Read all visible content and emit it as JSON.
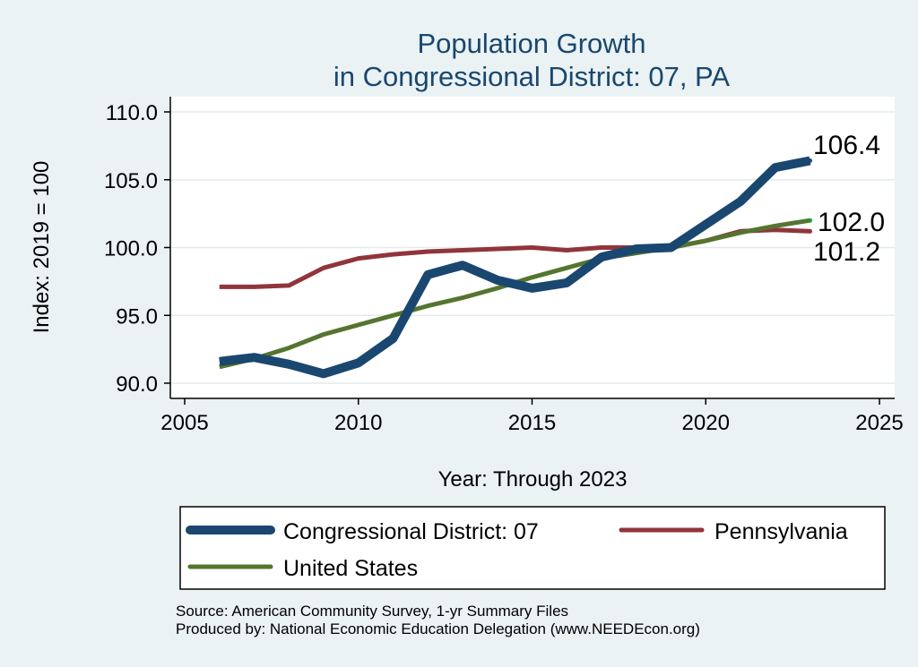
{
  "chart_data": {
    "type": "line",
    "title_lines": [
      "Population Growth",
      "in Congressional District: 07, PA"
    ],
    "xlabel": "Year: Through 2023",
    "ylabel": "Index: 2019 = 100",
    "xlim": [
      2005,
      2025
    ],
    "ylim": [
      90,
      110
    ],
    "x_ticks": [
      "2005",
      "2010",
      "2015",
      "2020",
      "2025"
    ],
    "y_ticks": [
      "90.0",
      "95.0",
      "100.0",
      "105.0",
      "110.0"
    ],
    "grid": "horizontal",
    "x": [
      2006,
      2007,
      2008,
      2009,
      2010,
      2011,
      2012,
      2013,
      2014,
      2015,
      2016,
      2017,
      2018,
      2019,
      2020,
      2021,
      2022,
      2023
    ],
    "series": [
      {
        "name": "Congressional District: 07",
        "color": "#1a476f",
        "values": [
          91.6,
          91.9,
          91.4,
          90.7,
          91.5,
          93.3,
          98.0,
          98.7,
          97.6,
          97.0,
          97.4,
          99.3,
          99.9,
          100.0,
          101.7,
          103.4,
          105.9,
          106.4
        ],
        "end_label": "106.4"
      },
      {
        "name": "Pennsylvania",
        "color": "#90353b",
        "values": [
          97.1,
          97.1,
          97.2,
          98.5,
          99.2,
          99.5,
          99.7,
          99.8,
          99.9,
          100.0,
          99.8,
          100.0,
          100.0,
          100.0,
          100.5,
          101.2,
          101.3,
          101.2
        ],
        "end_label": "101.2"
      },
      {
        "name": "United States",
        "color": "#55752f",
        "values": [
          91.2,
          91.8,
          92.6,
          93.6,
          94.3,
          95.0,
          95.7,
          96.3,
          97.0,
          97.8,
          98.5,
          99.2,
          99.6,
          100.0,
          100.5,
          101.1,
          101.6,
          102.0
        ],
        "end_label": "102.0"
      }
    ],
    "legend": {
      "position": "bottom",
      "entries": [
        "Congressional District: 07",
        "Pennsylvania",
        "United States"
      ]
    },
    "footer": [
      "Source: American Community Survey, 1-yr Summary Files",
      "Produced by: National Economic Education Delegation (www.NEEDEcon.org)"
    ]
  }
}
